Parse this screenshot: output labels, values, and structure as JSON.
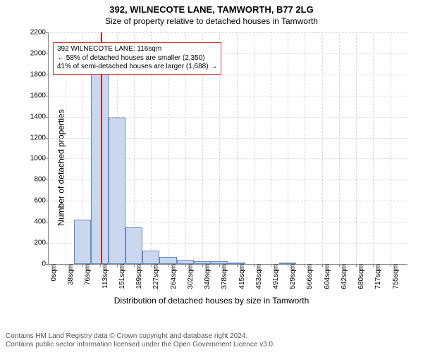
{
  "title": "392, WILNECOTE LANE, TAMWORTH, B77 2LG",
  "subtitle": "Size of property relative to detached houses in Tamworth",
  "ylabel": "Number of detached properties",
  "xlabel": "Distribution of detached houses by size in Tamworth",
  "chart": {
    "type": "histogram",
    "ylim": [
      0,
      2200
    ],
    "ytick_step": 200,
    "xlim": [
      0,
      793
    ],
    "xtick_step": 37.75,
    "xtick_start": 0,
    "xtick_labels": [
      "0sqm",
      "38sqm",
      "76sqm",
      "113sqm",
      "151sqm",
      "189sqm",
      "227sqm",
      "264sqm",
      "302sqm",
      "340sqm",
      "378sqm",
      "415sqm",
      "453sqm",
      "491sqm",
      "529sqm",
      "566sqm",
      "604sqm",
      "642sqm",
      "680sqm",
      "717sqm",
      "755sqm"
    ],
    "bars": [
      {
        "x0": 19,
        "x1": 56.5,
        "value": 0
      },
      {
        "x0": 56.5,
        "x1": 94.25,
        "value": 420
      },
      {
        "x0": 94.25,
        "x1": 132,
        "value": 1960
      },
      {
        "x0": 132,
        "x1": 169.75,
        "value": 1390
      },
      {
        "x0": 169.75,
        "x1": 207.5,
        "value": 350
      },
      {
        "x0": 207.5,
        "x1": 245.25,
        "value": 130
      },
      {
        "x0": 245.25,
        "x1": 283,
        "value": 70
      },
      {
        "x0": 283,
        "x1": 320.75,
        "value": 40
      },
      {
        "x0": 320.75,
        "x1": 358.5,
        "value": 30
      },
      {
        "x0": 358.5,
        "x1": 396.25,
        "value": 25
      },
      {
        "x0": 396.25,
        "x1": 434,
        "value": 5
      },
      {
        "x0": 434,
        "x1": 471.75,
        "value": 0
      },
      {
        "x0": 471.75,
        "x1": 509.5,
        "value": 0
      },
      {
        "x0": 509.5,
        "x1": 547.25,
        "value": 5
      },
      {
        "x0": 547.25,
        "x1": 585,
        "value": 0
      }
    ],
    "bar_fill": "#c9d7ef",
    "bar_stroke": "#6a88bf",
    "grid_color": "#cfcfcf",
    "background": "#ffffff",
    "reference_line": {
      "x": 116,
      "color": "#c02828",
      "width": 2
    }
  },
  "annotation": {
    "border_color": "#d03030",
    "lines": [
      "392 WILNECOTE LANE: 116sqm",
      "← 58% of detached houses are smaller (2,350)",
      "41% of semi-detached houses are larger (1,688) →"
    ]
  },
  "footer": {
    "line1": "Contains HM Land Registry data © Crown copyright and database right 2024.",
    "line2": "Contains public sector information licensed under the Open Government Licence v3.0."
  },
  "fonts": {
    "title_size": 13,
    "subtitle_size": 12,
    "axis_label_size": 12,
    "tick_size": 10,
    "anno_size": 10,
    "footer_size": 10
  }
}
